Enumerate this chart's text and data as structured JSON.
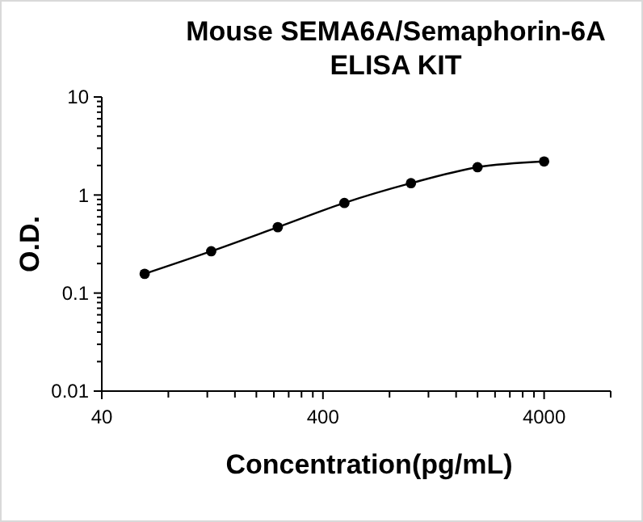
{
  "chart_data": {
    "type": "line",
    "title": "Mouse SEMA6A/Semaphorin-6A\nELISA KIT",
    "xlabel": "Concentration(pg/mL)",
    "ylabel": "O.D.",
    "x": [
      62.5,
      125,
      250,
      500,
      1000,
      2000,
      4000
    ],
    "series": [
      {
        "color": "#000000",
        "values": [
          0.157,
          0.267,
          0.47,
          0.83,
          1.32,
          1.92,
          2.2
        ]
      }
    ],
    "log": "xy",
    "xlim": [
      40,
      8000
    ],
    "ylim": [
      0.01,
      10
    ],
    "xticks": [
      40,
      {
        "value": 80,
        "label": null
      },
      {
        "value": 120,
        "label": null
      },
      {
        "value": 160,
        "label": null
      },
      {
        "value": 200,
        "label": null
      },
      {
        "value": 240,
        "label": null
      },
      {
        "value": 280,
        "label": null
      },
      {
        "value": 320,
        "label": null
      },
      {
        "value": 360,
        "label": null
      },
      400,
      {
        "value": 800,
        "label": null
      },
      {
        "value": 1200,
        "label": null
      },
      {
        "value": 1600,
        "label": null
      },
      {
        "value": 2000,
        "label": null
      },
      {
        "value": 2400,
        "label": null
      },
      {
        "value": 2800,
        "label": null
      },
      {
        "value": 3200,
        "label": null
      },
      {
        "value": 3600,
        "label": null
      },
      4000,
      {
        "value": 8000,
        "label": null
      }
    ],
    "yticks": [
      0.01,
      {
        "value": 0.02,
        "label": null
      },
      {
        "value": 0.03,
        "label": null
      },
      {
        "value": 0.04,
        "label": null
      },
      {
        "value": 0.05,
        "label": null
      },
      {
        "value": 0.06,
        "label": null
      },
      {
        "value": 0.07,
        "label": null
      },
      {
        "value": 0.08,
        "label": null
      },
      {
        "value": 0.09,
        "label": null
      },
      0.1,
      {
        "value": 0.2,
        "label": null
      },
      {
        "value": 0.3,
        "label": null
      },
      {
        "value": 0.4,
        "label": null
      },
      {
        "value": 0.5,
        "label": null
      },
      {
        "value": 0.6,
        "label": null
      },
      {
        "value": 0.7,
        "label": null
      },
      {
        "value": 0.8,
        "label": null
      },
      {
        "value": 0.9,
        "label": null
      },
      1,
      {
        "value": 2,
        "label": null
      },
      {
        "value": 3,
        "label": null
      },
      {
        "value": 4,
        "label": null
      },
      {
        "value": 5,
        "label": null
      },
      {
        "value": 6,
        "label": null
      },
      {
        "value": 7,
        "label": null
      },
      {
        "value": 8,
        "label": null
      },
      {
        "value": 9,
        "label": null
      },
      10
    ],
    "grid": false,
    "marker": "circle",
    "line_style": "solid"
  }
}
